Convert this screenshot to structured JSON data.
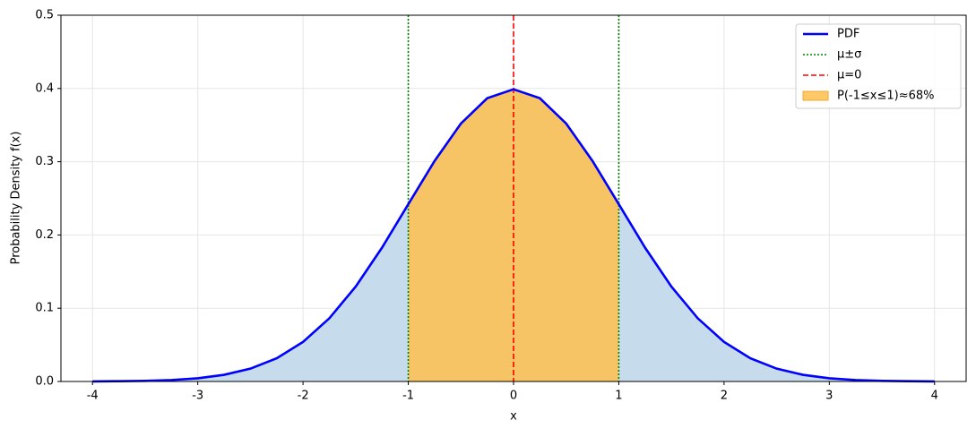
{
  "chart_data": {
    "type": "line",
    "xlabel": "x",
    "ylabel": "Probability Density f(x)",
    "x": [
      -4,
      -3.75,
      -3.5,
      -3.25,
      -3,
      -2.75,
      -2.5,
      -2.25,
      -2,
      -1.75,
      -1.5,
      -1.25,
      -1,
      -0.75,
      -0.5,
      -0.25,
      0,
      0.25,
      0.5,
      0.75,
      1,
      1.25,
      1.5,
      1.75,
      2,
      2.25,
      2.5,
      2.75,
      3,
      3.25,
      3.5,
      3.75,
      4
    ],
    "series": [
      {
        "name": "PDF",
        "color": "#0000ff",
        "values": [
          0.0001,
          0.0004,
          0.0009,
          0.002,
          0.0044,
          0.0091,
          0.0175,
          0.0317,
          0.054,
          0.0863,
          0.1295,
          0.1826,
          0.242,
          0.3011,
          0.3521,
          0.3867,
          0.3989,
          0.3867,
          0.3521,
          0.3011,
          0.242,
          0.1826,
          0.1295,
          0.0863,
          0.054,
          0.0317,
          0.0175,
          0.0091,
          0.0044,
          0.002,
          0.0009,
          0.0004,
          0.0001
        ]
      }
    ],
    "under_fill_color": "#c6dcec",
    "shaded": {
      "name": "P(-1≤x≤1)≈68%",
      "color": "#ffc04d",
      "from": -1,
      "to": 1
    },
    "vlines": [
      {
        "name": "μ±σ",
        "color": "#008000",
        "style": "dotted",
        "x": [
          -1,
          1
        ]
      },
      {
        "name": "μ=0",
        "color": "#ff0000",
        "style": "dashed",
        "x": [
          0
        ]
      }
    ],
    "xlim": [
      -4.3,
      4.3
    ],
    "ylim": [
      0,
      0.5
    ],
    "xticks": [
      -4,
      -3,
      -2,
      -1,
      0,
      1,
      2,
      3,
      4
    ],
    "yticks": [
      {
        "value": 0,
        "label": "0.0"
      },
      0.1,
      0.2,
      0.3,
      0.4,
      0.5
    ],
    "grid": true,
    "legend": "upper right"
  }
}
